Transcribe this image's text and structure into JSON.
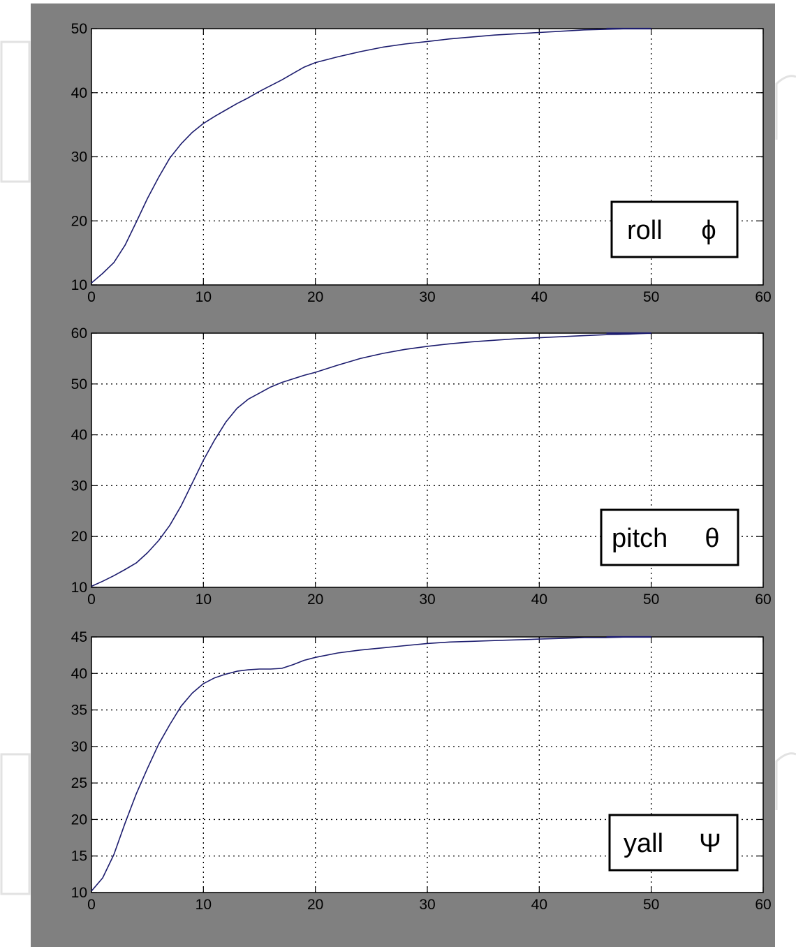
{
  "chart_data": [
    {
      "type": "line",
      "legend": {
        "label": "roll",
        "symbol": "ϕ",
        "placement": "bottom-right"
      },
      "xlim": [
        0,
        60
      ],
      "ylim": [
        10,
        50
      ],
      "x_ticks": [
        0,
        10,
        20,
        30,
        40,
        50,
        60
      ],
      "y_ticks": [
        10,
        20,
        30,
        40,
        50
      ],
      "grid": true,
      "line_color": "#1c1c6e",
      "series": [
        {
          "x": [
            0,
            1,
            2,
            3,
            4,
            5,
            6,
            7,
            8,
            9,
            10,
            11,
            12,
            13,
            14,
            15,
            16,
            17,
            18,
            19,
            20,
            22,
            24,
            26,
            28,
            30,
            32,
            34,
            36,
            38,
            40,
            42,
            44,
            46,
            48,
            50
          ],
          "y": [
            10.3,
            11.8,
            13.5,
            16.2,
            19.8,
            23.5,
            26.8,
            29.8,
            32.0,
            33.8,
            35.2,
            36.3,
            37.3,
            38.3,
            39.2,
            40.2,
            41.1,
            42.0,
            43.0,
            44.0,
            44.7,
            45.6,
            46.4,
            47.1,
            47.6,
            48.0,
            48.4,
            48.7,
            49.0,
            49.2,
            49.4,
            49.6,
            49.8,
            49.9,
            50.0,
            50.0
          ]
        }
      ]
    },
    {
      "type": "line",
      "legend": {
        "label": "pitch",
        "symbol": "θ",
        "placement": "bottom-right"
      },
      "xlim": [
        0,
        60
      ],
      "ylim": [
        10,
        60
      ],
      "x_ticks": [
        0,
        10,
        20,
        30,
        40,
        50,
        60
      ],
      "y_ticks": [
        10,
        20,
        30,
        40,
        50,
        60
      ],
      "grid": true,
      "line_color": "#1c1c6e",
      "series": [
        {
          "x": [
            0,
            1,
            2,
            3,
            4,
            5,
            6,
            7,
            8,
            9,
            10,
            11,
            12,
            13,
            14,
            15,
            16,
            17,
            18,
            19,
            20,
            22,
            24,
            26,
            28,
            30,
            32,
            34,
            36,
            38,
            40,
            42,
            44,
            46,
            48,
            50
          ],
          "y": [
            10.2,
            11.2,
            12.3,
            13.5,
            14.8,
            16.8,
            19.2,
            22.2,
            26.0,
            30.5,
            35.0,
            39.0,
            42.5,
            45.2,
            47.0,
            48.2,
            49.4,
            50.3,
            51.0,
            51.7,
            52.3,
            53.7,
            55.0,
            56.0,
            56.8,
            57.4,
            57.9,
            58.3,
            58.6,
            58.9,
            59.1,
            59.3,
            59.5,
            59.7,
            59.8,
            60.0
          ]
        }
      ]
    },
    {
      "type": "line",
      "legend": {
        "label": "yall",
        "symbol": "Ψ",
        "placement": "bottom-right"
      },
      "xlim": [
        0,
        60
      ],
      "ylim": [
        10,
        45
      ],
      "x_ticks": [
        0,
        10,
        20,
        30,
        40,
        50,
        60
      ],
      "y_ticks": [
        10,
        15,
        20,
        25,
        30,
        35,
        40,
        45
      ],
      "grid": true,
      "line_color": "#1c1c6e",
      "series": [
        {
          "x": [
            0,
            1,
            2,
            3,
            4,
            5,
            6,
            7,
            8,
            9,
            10,
            11,
            12,
            13,
            14,
            15,
            16,
            17,
            18,
            19,
            20,
            22,
            24,
            26,
            28,
            30,
            32,
            34,
            36,
            38,
            40,
            42,
            44,
            46,
            48,
            50
          ],
          "y": [
            10.2,
            12.0,
            15.2,
            19.5,
            23.5,
            27.0,
            30.3,
            33.0,
            35.5,
            37.3,
            38.6,
            39.4,
            39.9,
            40.3,
            40.5,
            40.6,
            40.6,
            40.7,
            41.2,
            41.8,
            42.2,
            42.8,
            43.2,
            43.5,
            43.8,
            44.1,
            44.3,
            44.4,
            44.5,
            44.6,
            44.7,
            44.8,
            44.9,
            44.9,
            45.0,
            45.0
          ]
        }
      ]
    }
  ]
}
